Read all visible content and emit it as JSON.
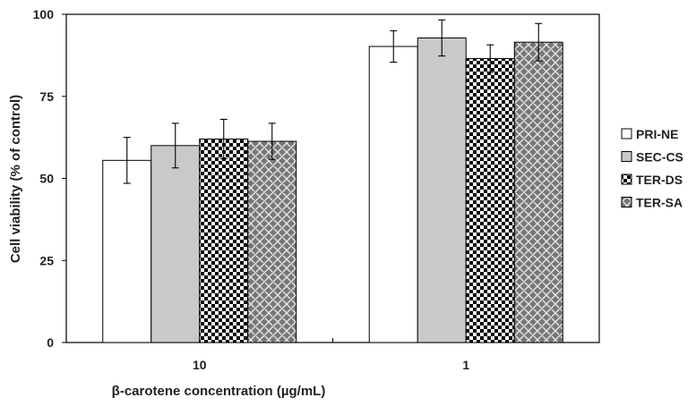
{
  "chart_data": {
    "type": "bar",
    "title": "",
    "xlabel": "β-carotene concentration (µg/mL)",
    "ylabel": "Cell viability (% of control)",
    "ylim": [
      0,
      100
    ],
    "yticks": [
      0,
      25,
      50,
      75,
      100
    ],
    "grid": false,
    "legend_position": "right",
    "categories": [
      "10",
      "1"
    ],
    "series": [
      {
        "name": "PRI-NE",
        "pattern": "white",
        "values": [
          55.5,
          90.2
        ],
        "errors": [
          7.0,
          4.8
        ]
      },
      {
        "name": "SEC-CS",
        "pattern": "gray",
        "values": [
          60.0,
          92.8
        ],
        "errors": [
          6.8,
          5.5
        ]
      },
      {
        "name": "TER-DS",
        "pattern": "checker",
        "values": [
          62.0,
          86.5
        ],
        "errors": [
          6.0,
          4.2
        ]
      },
      {
        "name": "TER-SA",
        "pattern": "weave",
        "values": [
          61.3,
          91.5
        ],
        "errors": [
          5.5,
          5.7
        ]
      }
    ],
    "colors": {
      "axis": "#000000",
      "bar_outline": "#000000",
      "gray_fill": "#c9c9c9",
      "weave_fill": "#777777"
    }
  }
}
